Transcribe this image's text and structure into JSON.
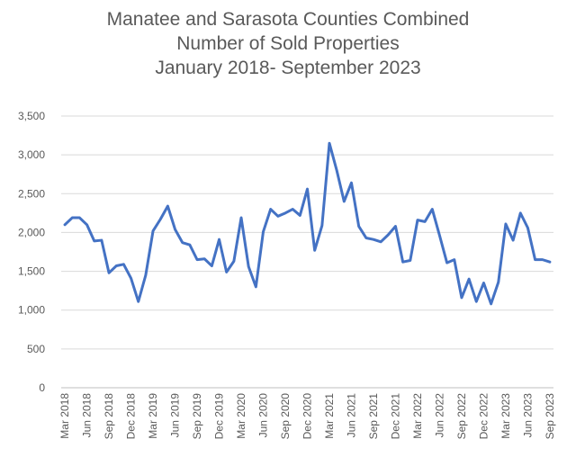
{
  "chart_data": {
    "type": "line",
    "title_lines": [
      "Manatee and Sarasota Counties Combined",
      "Number of Sold Properties",
      "January 2018- September 2023"
    ],
    "xlabel": "",
    "ylabel": "",
    "ylim": [
      0,
      3500
    ],
    "y_ticks": [
      "0",
      "500",
      "1,000",
      "1,500",
      "2,000",
      "2,500",
      "3,000",
      "3,500"
    ],
    "y_tick_values": [
      0,
      500,
      1000,
      1500,
      2000,
      2500,
      3000,
      3500
    ],
    "grid": true,
    "legend": "none",
    "x_tick_labels": [
      "Mar 2018",
      "Jun 2018",
      "Sep 2018",
      "Dec 2018",
      "Mar 2019",
      "Jun 2019",
      "Sep 2019",
      "Dec 2019",
      "Mar 2020",
      "Jun 2020",
      "Sep 2020",
      "Dec 2020",
      "Mar 2021",
      "Jun 2021",
      "Sep 2021",
      "Dec 2021",
      "Mar 2022",
      "Jun 2022",
      "Sep 2022",
      "Dec 2022",
      "Mar 2023",
      "Jun 2023",
      "Sep 2023"
    ],
    "x_tick_indices": [
      0,
      3,
      6,
      9,
      12,
      15,
      18,
      21,
      24,
      27,
      30,
      33,
      36,
      39,
      42,
      45,
      48,
      51,
      54,
      57,
      60,
      63,
      66
    ],
    "series": [
      {
        "color": "#4472C4",
        "months": [
          "Mar 2018",
          "Apr 2018",
          "May 2018",
          "Jun 2018",
          "Jul 2018",
          "Aug 2018",
          "Sep 2018",
          "Oct 2018",
          "Nov 2018",
          "Dec 2018",
          "Jan 2019",
          "Feb 2019",
          "Mar 2019",
          "Apr 2019",
          "May 2019",
          "Jun 2019",
          "Jul 2019",
          "Aug 2019",
          "Sep 2019",
          "Oct 2019",
          "Nov 2019",
          "Dec 2019",
          "Jan 2020",
          "Feb 2020",
          "Mar 2020",
          "Apr 2020",
          "May 2020",
          "Jun 2020",
          "Jul 2020",
          "Aug 2020",
          "Sep 2020",
          "Oct 2020",
          "Nov 2020",
          "Dec 2020",
          "Jan 2021",
          "Feb 2021",
          "Mar 2021",
          "Apr 2021",
          "May 2021",
          "Jun 2021",
          "Jul 2021",
          "Aug 2021",
          "Sep 2021",
          "Oct 2021",
          "Nov 2021",
          "Dec 2021",
          "Jan 2022",
          "Feb 2022",
          "Mar 2022",
          "Apr 2022",
          "May 2022",
          "Jun 2022",
          "Jul 2022",
          "Aug 2022",
          "Sep 2022",
          "Oct 2022",
          "Nov 2022",
          "Dec 2022",
          "Jan 2023",
          "Feb 2023",
          "Mar 2023",
          "Apr 2023",
          "May 2023",
          "Jun 2023",
          "Jul 2023",
          "Aug 2023",
          "Sep 2023"
        ],
        "values": [
          2100,
          2190,
          2190,
          2100,
          1890,
          1900,
          1480,
          1570,
          1590,
          1410,
          1110,
          1450,
          2020,
          2170,
          2340,
          2040,
          1870,
          1840,
          1650,
          1660,
          1570,
          1910,
          1490,
          1630,
          2190,
          1560,
          1300,
          2010,
          2300,
          2210,
          2250,
          2300,
          2220,
          2560,
          1770,
          2090,
          3150,
          2800,
          2400,
          2640,
          2080,
          1930,
          1910,
          1880,
          1970,
          2080,
          1620,
          1640,
          2160,
          2140,
          2300,
          1960,
          1610,
          1650,
          1160,
          1400,
          1110,
          1350,
          1080,
          1360,
          2110,
          1900,
          2250,
          2060,
          1650,
          1650,
          1620
        ]
      }
    ]
  }
}
